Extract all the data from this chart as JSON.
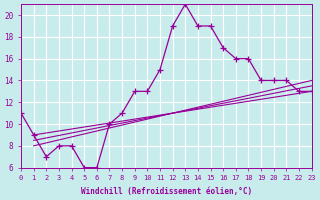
{
  "xlabel": "Windchill (Refroidissement éolien,°C)",
  "background_color": "#c8ecec",
  "line_color": "#990099",
  "grid_color": "#ffffff",
  "xlim": [
    0,
    23
  ],
  "ylim": [
    6,
    21
  ],
  "yticks": [
    6,
    8,
    10,
    12,
    14,
    16,
    18,
    20
  ],
  "xticks": [
    0,
    1,
    2,
    3,
    4,
    5,
    6,
    7,
    8,
    9,
    10,
    11,
    12,
    13,
    14,
    15,
    16,
    17,
    18,
    19,
    20,
    21,
    22,
    23
  ],
  "main_x": [
    0,
    1,
    2,
    3,
    4,
    5,
    6,
    7,
    8,
    9,
    10,
    11,
    12,
    13,
    14,
    15,
    16,
    17,
    18,
    19,
    20,
    21,
    22,
    23
  ],
  "main_y": [
    11,
    9,
    7,
    8,
    8,
    6,
    6,
    10,
    11,
    13,
    13,
    15,
    19,
    21,
    19,
    19,
    17,
    16,
    16,
    14,
    14,
    14,
    13,
    13
  ],
  "line1_x": [
    1,
    23
  ],
  "line1_y": [
    9.0,
    13.0
  ],
  "line2_x": [
    1,
    23
  ],
  "line2_y": [
    8.5,
    13.5
  ],
  "line3_x": [
    1,
    23
  ],
  "line3_y": [
    8.0,
    14.0
  ]
}
